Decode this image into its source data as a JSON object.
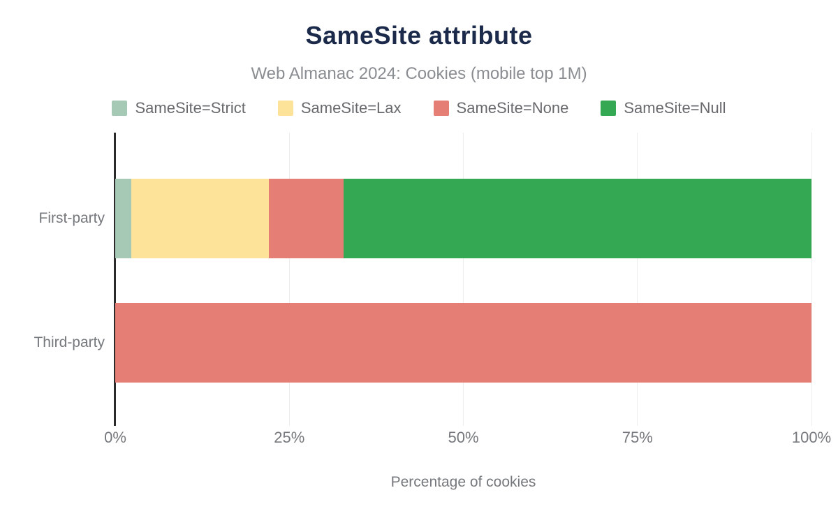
{
  "chart_data": {
    "type": "bar",
    "orientation": "horizontal",
    "stacked": true,
    "title": "SameSite attribute",
    "subtitle": "Web Almanac 2024: Cookies (mobile top 1M)",
    "xlabel": "Percentage of cookies",
    "categories": [
      "First-party",
      "Third-party"
    ],
    "series": [
      {
        "name": "SameSite=Strict",
        "color": "#a5c9b4",
        "values": [
          2.3,
          0
        ]
      },
      {
        "name": "SameSite=Lax",
        "color": "#fde299",
        "values": [
          19.8,
          0
        ]
      },
      {
        "name": "SameSite=None",
        "color": "#e57e74",
        "values": [
          10.7,
          100
        ]
      },
      {
        "name": "SameSite=Null",
        "color": "#34a853",
        "values": [
          67.2,
          0
        ]
      }
    ],
    "x_ticks": [
      "0%",
      "25%",
      "50%",
      "75%",
      "100%"
    ],
    "xlim": [
      0,
      100
    ],
    "legend_position": "top",
    "grid": "vertical",
    "colors": {
      "title_text": "#1b2a4a",
      "subtitle_text": "#8a8d91",
      "legend_text": "#67696c",
      "tick_text": "#75787c",
      "gridline": "#ededed",
      "axis_line": "#2b2b2b",
      "background": "#ffffff"
    }
  }
}
